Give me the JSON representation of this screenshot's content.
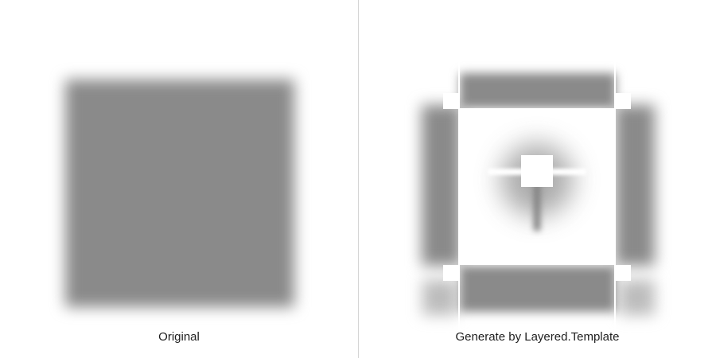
{
  "panels": {
    "left": {
      "caption": "Original"
    },
    "right": {
      "caption": "Generate by Layered.Template"
    }
  },
  "colors": {
    "shadow_gray": "#8a8a8a",
    "background": "#ffffff",
    "divider": "#d4d4d4",
    "caption_text": "#1e1e1e"
  }
}
